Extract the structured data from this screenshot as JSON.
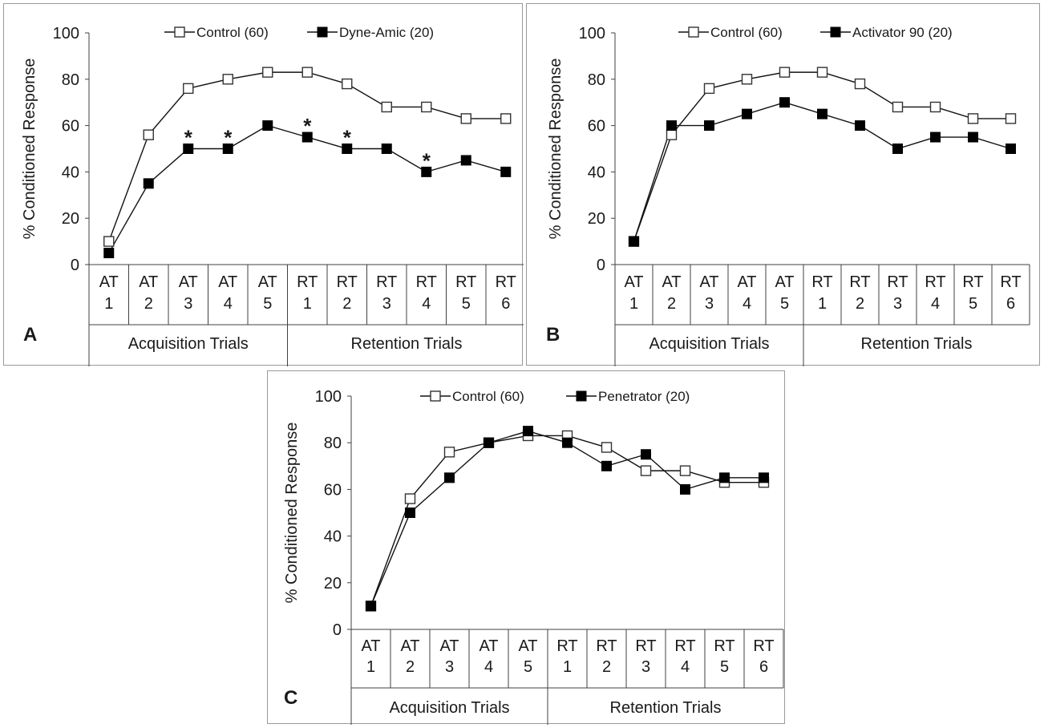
{
  "chart_data": [
    {
      "type": "line",
      "panel_label": "A",
      "ylabel": "% Conditioned Response",
      "ylim": [
        0,
        100
      ],
      "yticks": [
        "0",
        "20",
        "40",
        "60",
        "80",
        "100"
      ],
      "categories": [
        [
          "AT",
          "1"
        ],
        [
          "AT",
          "2"
        ],
        [
          "AT",
          "3"
        ],
        [
          "AT",
          "4"
        ],
        [
          "AT",
          "5"
        ],
        [
          "RT",
          "1"
        ],
        [
          "RT",
          "2"
        ],
        [
          "RT",
          "3"
        ],
        [
          "RT",
          "4"
        ],
        [
          "RT",
          "5"
        ],
        [
          "RT",
          "6"
        ]
      ],
      "groups": [
        {
          "label": "Acquisition Trials",
          "count": 5
        },
        {
          "label": "Retention Trials",
          "count": 6
        }
      ],
      "legend_position": "top",
      "series": [
        {
          "name": "Control (60)",
          "marker": "open-square",
          "values": [
            10,
            56,
            76,
            80,
            83,
            83,
            78,
            68,
            68,
            63,
            63
          ]
        },
        {
          "name": "Dyne-Amic (20)",
          "marker": "filled-square",
          "values": [
            5,
            35,
            50,
            50,
            60,
            55,
            50,
            50,
            40,
            45,
            40
          ]
        }
      ],
      "annotations": [
        {
          "text": "*",
          "category_index": 2,
          "series_index": 1
        },
        {
          "text": "*",
          "category_index": 3,
          "series_index": 1
        },
        {
          "text": "*",
          "category_index": 5,
          "series_index": 1
        },
        {
          "text": "*",
          "category_index": 6,
          "series_index": 1
        },
        {
          "text": "*",
          "category_index": 8,
          "series_index": 1
        }
      ]
    },
    {
      "type": "line",
      "panel_label": "B",
      "ylabel": "% Conditioned Response",
      "ylim": [
        0,
        100
      ],
      "yticks": [
        "0",
        "20",
        "40",
        "60",
        "80",
        "100"
      ],
      "categories": [
        [
          "AT",
          "1"
        ],
        [
          "AT",
          "2"
        ],
        [
          "AT",
          "3"
        ],
        [
          "AT",
          "4"
        ],
        [
          "AT",
          "5"
        ],
        [
          "RT",
          "1"
        ],
        [
          "RT",
          "2"
        ],
        [
          "RT",
          "3"
        ],
        [
          "RT",
          "4"
        ],
        [
          "RT",
          "5"
        ],
        [
          "RT",
          "6"
        ]
      ],
      "groups": [
        {
          "label": "Acquisition Trials",
          "count": 5
        },
        {
          "label": "Retention Trials",
          "count": 6
        }
      ],
      "legend_position": "top",
      "series": [
        {
          "name": "Control (60)",
          "marker": "open-square",
          "values": [
            10,
            56,
            76,
            80,
            83,
            83,
            78,
            68,
            68,
            63,
            63
          ]
        },
        {
          "name": "Activator 90 (20)",
          "marker": "filled-square",
          "values": [
            10,
            60,
            60,
            65,
            70,
            65,
            60,
            50,
            55,
            55,
            50
          ]
        }
      ],
      "annotations": []
    },
    {
      "type": "line",
      "panel_label": "C",
      "ylabel": "% Conditioned Response",
      "ylim": [
        0,
        100
      ],
      "yticks": [
        "0",
        "20",
        "40",
        "60",
        "80",
        "100"
      ],
      "categories": [
        [
          "AT",
          "1"
        ],
        [
          "AT",
          "2"
        ],
        [
          "AT",
          "3"
        ],
        [
          "AT",
          "4"
        ],
        [
          "AT",
          "5"
        ],
        [
          "RT",
          "1"
        ],
        [
          "RT",
          "2"
        ],
        [
          "RT",
          "3"
        ],
        [
          "RT",
          "4"
        ],
        [
          "RT",
          "5"
        ],
        [
          "RT",
          "6"
        ]
      ],
      "groups": [
        {
          "label": "Acquisition Trials",
          "count": 5
        },
        {
          "label": "Retention Trials",
          "count": 6
        }
      ],
      "legend_position": "top",
      "series": [
        {
          "name": "Control (60)",
          "marker": "open-square",
          "values": [
            10,
            56,
            76,
            80,
            83,
            83,
            78,
            68,
            68,
            63,
            63
          ]
        },
        {
          "name": "Penetrator (20)",
          "marker": "filled-square",
          "values": [
            10,
            50,
            65,
            80,
            85,
            80,
            70,
            75,
            60,
            65,
            65
          ]
        }
      ],
      "annotations": []
    }
  ]
}
